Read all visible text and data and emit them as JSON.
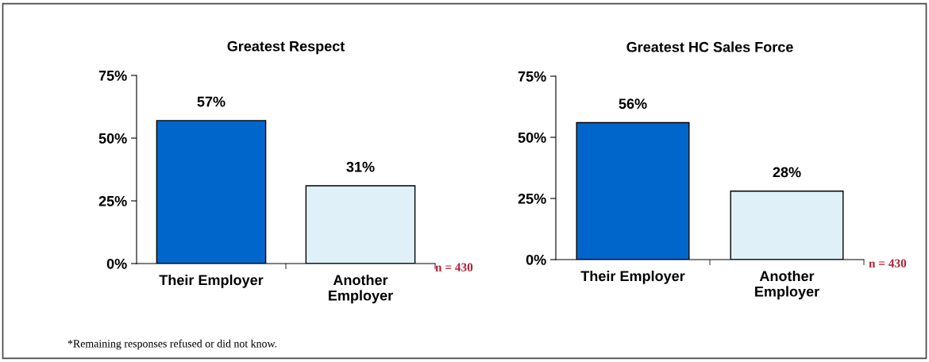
{
  "chart_data": [
    {
      "type": "bar",
      "title": "Greatest Respect",
      "categories": [
        "Their Employer",
        "Another\nEmployer"
      ],
      "values": [
        57,
        31
      ],
      "colors": [
        "#0066cc",
        "#e0f0f8"
      ],
      "value_labels": [
        "57%",
        "31%"
      ],
      "ylim": [
        0,
        75
      ],
      "yticks": [
        {
          "value": 0,
          "label": "0%"
        },
        {
          "value": 25,
          "label": "25%"
        },
        {
          "value": 50,
          "label": "50%"
        },
        {
          "value": 75,
          "label": "75%"
        }
      ],
      "grid": false,
      "legend": false,
      "annotations": [
        "n = 430",
        "*Remaining responses refused or did not know."
      ]
    },
    {
      "type": "bar",
      "title": "Greatest HC Sales Force",
      "categories": [
        "Their Employer",
        "Another\nEmployer"
      ],
      "values": [
        56,
        28
      ],
      "colors": [
        "#0066cc",
        "#e0f0f8"
      ],
      "value_labels": [
        "56%",
        "28%"
      ],
      "ylim": [
        0,
        75
      ],
      "yticks": [
        {
          "value": 0,
          "label": "0%"
        },
        {
          "value": 25,
          "label": "25%"
        },
        {
          "value": 50,
          "label": "50%"
        },
        {
          "value": 75,
          "label": "75%"
        }
      ],
      "grid": false,
      "legend": false,
      "annotations": [
        "n = 430"
      ]
    }
  ]
}
